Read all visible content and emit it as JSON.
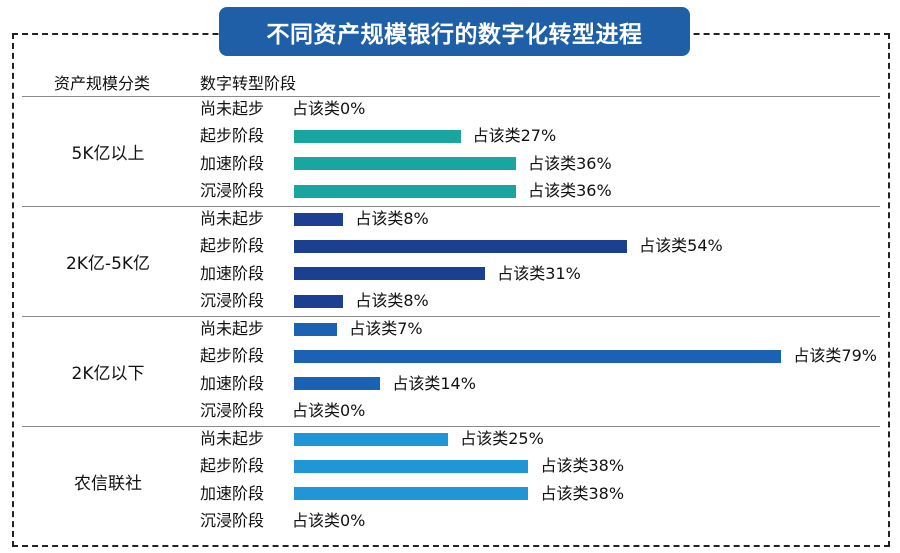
{
  "title": "不同资产规模银行的数字化转型进程",
  "headers": {
    "group": "资产规模分类",
    "stage": "数字转型阶段"
  },
  "value_prefix": "占该类",
  "colors": {
    "title_bg": "#1f5fa8",
    "group_colors": [
      "#1aa6a0",
      "#1c3f91",
      "#1b62b4",
      "#2196d6"
    ]
  },
  "chart_data": {
    "type": "bar",
    "orientation": "horizontal",
    "unit": "%",
    "groups": [
      {
        "name": "5K亿以上",
        "rows": [
          {
            "stage": "尚未起步",
            "value": 0
          },
          {
            "stage": "起步阶段",
            "value": 27
          },
          {
            "stage": "加速阶段",
            "value": 36
          },
          {
            "stage": "沉浸阶段",
            "value": 36
          }
        ]
      },
      {
        "name": "2K亿-5K亿",
        "rows": [
          {
            "stage": "尚未起步",
            "value": 8
          },
          {
            "stage": "起步阶段",
            "value": 54
          },
          {
            "stage": "加速阶段",
            "value": 31
          },
          {
            "stage": "沉浸阶段",
            "value": 8
          }
        ]
      },
      {
        "name": "2K亿以下",
        "rows": [
          {
            "stage": "尚未起步",
            "value": 7
          },
          {
            "stage": "起步阶段",
            "value": 79
          },
          {
            "stage": "加速阶段",
            "value": 14
          },
          {
            "stage": "沉浸阶段",
            "value": 0
          }
        ]
      },
      {
        "name": "农信联社",
        "rows": [
          {
            "stage": "尚未起步",
            "value": 25
          },
          {
            "stage": "起步阶段",
            "value": 38
          },
          {
            "stage": "加速阶段",
            "value": 38
          },
          {
            "stage": "沉浸阶段",
            "value": 0
          }
        ]
      }
    ]
  }
}
